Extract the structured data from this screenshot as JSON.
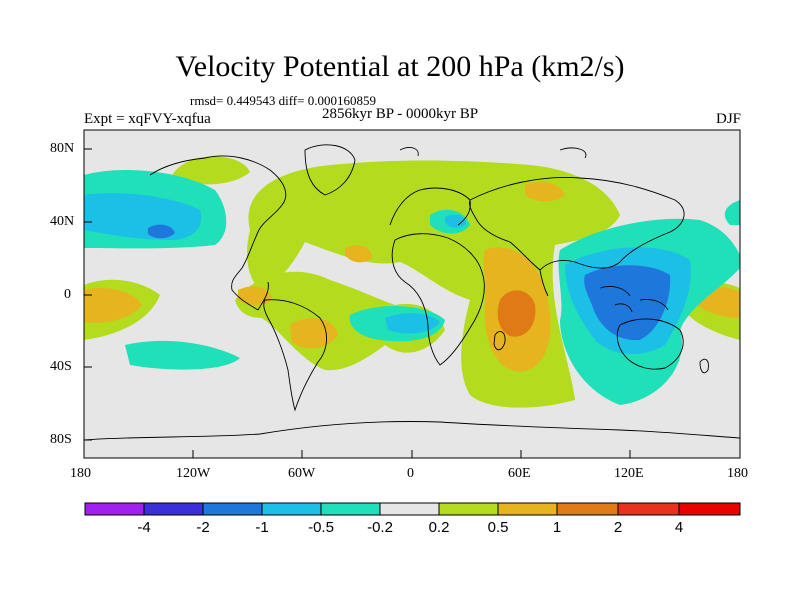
{
  "title": "Velocity Potential at 200 hPa (km2/s)",
  "stats": "rmsd= 0.449543  diff= 0.000160859",
  "experiment": "Expt = xqFVY-xqfua",
  "period": "2856kyr BP - 0000kyr BP",
  "season": "DJF",
  "axes": {
    "lon_labels": [
      "180",
      "120W",
      "60W",
      "0",
      "60E",
      "120E",
      "180"
    ],
    "lat_labels": [
      "80N",
      "40N",
      "0",
      "40S",
      "80S"
    ]
  },
  "colorbar": {
    "labels": [
      "-4",
      "-2",
      "-1",
      "-0.5",
      "-0.2",
      "0.2",
      "0.5",
      "1",
      "2",
      "4"
    ],
    "colors": [
      "#a020f0",
      "#3a2fd8",
      "#1e78dc",
      "#1cc0e6",
      "#1fe0b8",
      "#e6e6e6",
      "#b4dc1e",
      "#e6b41e",
      "#e07a14",
      "#e6321e"
    ]
  },
  "palette": {
    "neutral": "#e6e6e6",
    "weak_neg": "#1fe0b8",
    "mid_neg": "#1cc0e6",
    "strong_neg": "#1e78dc",
    "weak_pos": "#b4dc1e",
    "mid_pos": "#e6b41e",
    "strong_pos": "#e07a14"
  }
}
